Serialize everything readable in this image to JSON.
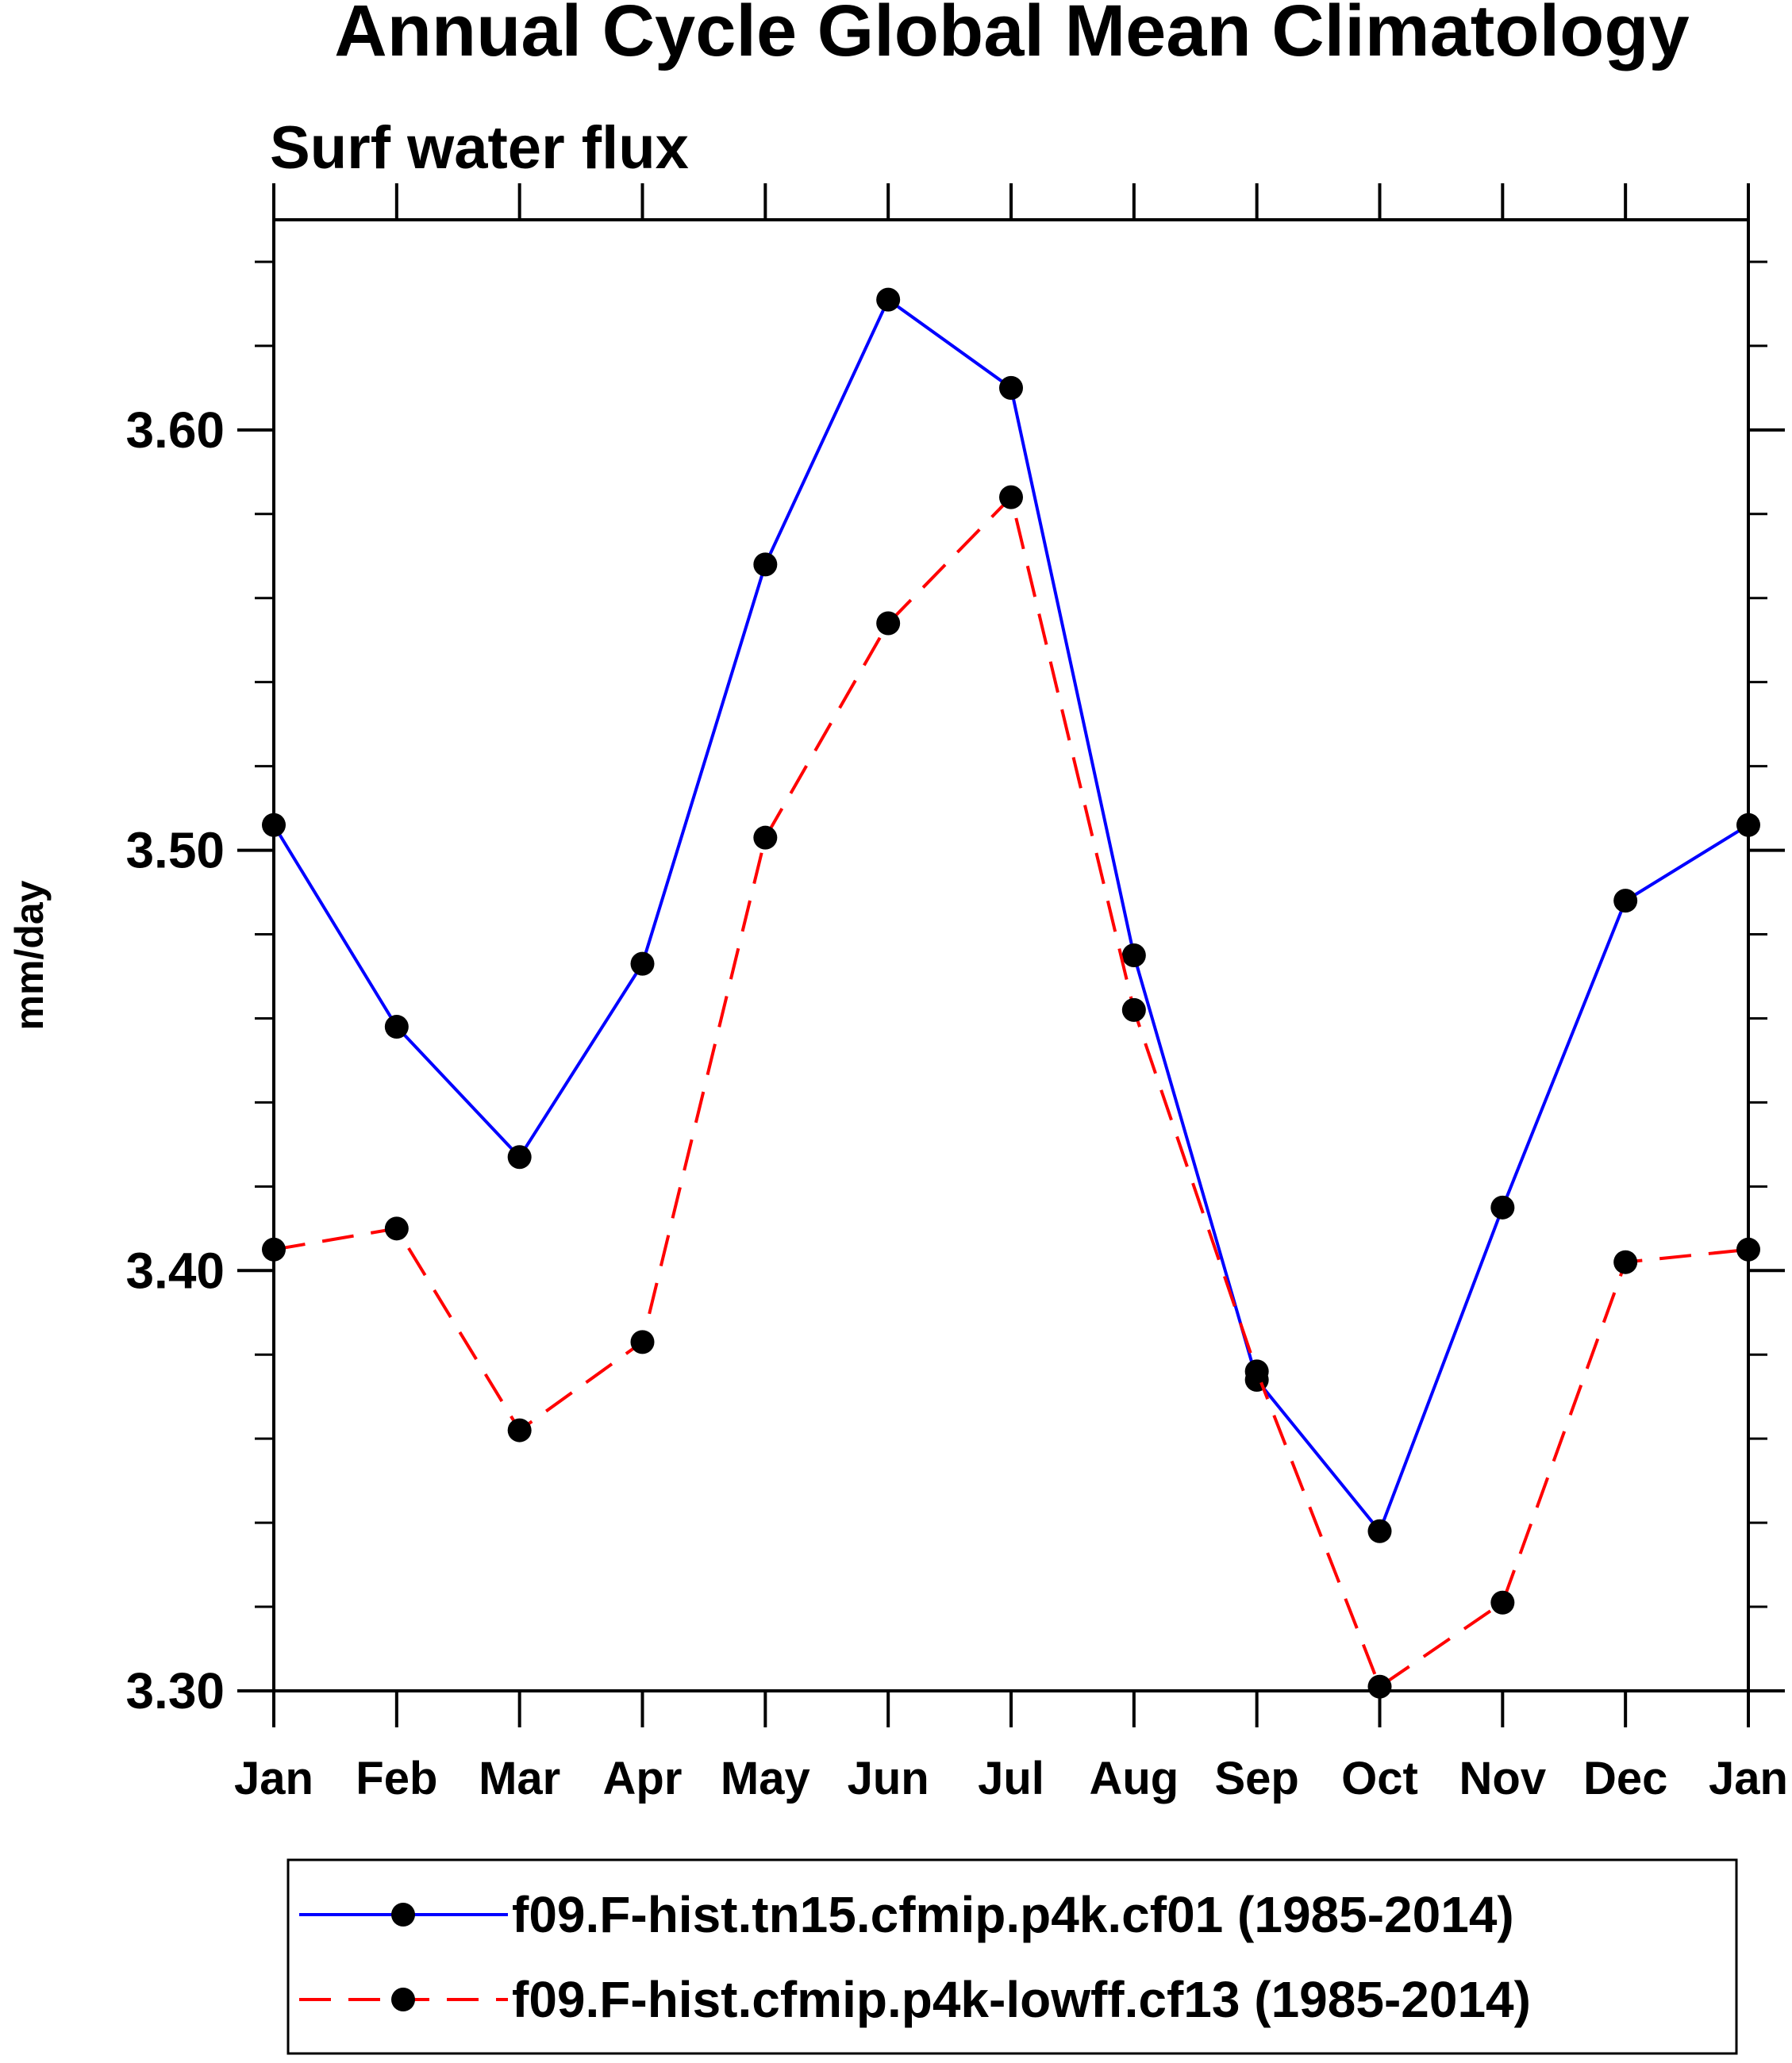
{
  "chart_data": {
    "type": "line",
    "title": "Annual Cycle Global Mean Climatology",
    "subtitle": "Surf water flux",
    "xlabel": "",
    "ylabel": "mm/day",
    "categories": [
      "Jan",
      "Feb",
      "Mar",
      "Apr",
      "May",
      "Jun",
      "Jul",
      "Aug",
      "Sep",
      "Oct",
      "Nov",
      "Dec",
      "Jan"
    ],
    "ylim": [
      3.3,
      3.65
    ],
    "yticks": [
      3.3,
      3.4,
      3.5,
      3.6
    ],
    "ytick_labels": [
      "3.30",
      "3.40",
      "3.50",
      "3.60"
    ],
    "y_minor_step": 0.02,
    "grid": false,
    "legend_position": "bottom",
    "series": [
      {
        "name": "f09.F-hist.tn15.cfmip.p4k.cf01 (1985-2014)",
        "color": "#0000ff",
        "line_style": "solid",
        "marker": "filled-circle",
        "values": [
          3.506,
          3.458,
          3.427,
          3.473,
          3.568,
          3.631,
          3.61,
          3.475,
          3.374,
          3.338,
          3.415,
          3.488,
          3.506
        ]
      },
      {
        "name": "f09.F-hist.cfmip.p4k-lowff.cf13 (1985-2014)",
        "color": "#ff0000",
        "line_style": "dashed",
        "marker": "filled-circle",
        "values": [
          3.405,
          3.41,
          3.362,
          3.383,
          3.503,
          3.554,
          3.584,
          3.462,
          3.376,
          3.301,
          3.321,
          3.402,
          3.405
        ]
      }
    ]
  }
}
